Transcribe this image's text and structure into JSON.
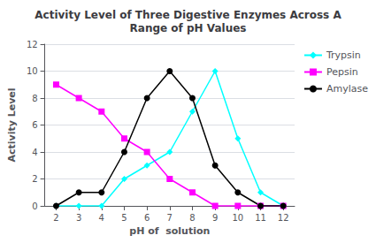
{
  "chart_data": {
    "type": "line",
    "title": "Activity Level of Three Digestive Enzymes Across A\nRange of pH Values",
    "xlabel": "pH of  solution",
    "ylabel": "Activity Level",
    "x": [
      2,
      3,
      4,
      5,
      6,
      7,
      8,
      9,
      10,
      11,
      12
    ],
    "xlim": [
      1.5,
      12.5
    ],
    "xticks": [
      2,
      3,
      4,
      5,
      6,
      7,
      8,
      9,
      10,
      11,
      12
    ],
    "ylim": [
      0,
      12
    ],
    "yticks": [
      0,
      2,
      4,
      6,
      8,
      10,
      12
    ],
    "grid": true,
    "legend": "upper right",
    "series": [
      {
        "name": "Trypsin",
        "color": "cyan",
        "marker": "diamond",
        "values": [
          0,
          0,
          0,
          2,
          3,
          4,
          7,
          10,
          5,
          1,
          0
        ]
      },
      {
        "name": "Pepsin",
        "color": "#ff00ff",
        "marker": "square",
        "values": [
          9,
          8,
          7,
          5,
          4,
          2,
          1,
          0,
          0,
          0,
          0
        ]
      },
      {
        "name": "Amylase",
        "color": "#000000",
        "marker": "circle",
        "values": [
          0,
          1,
          1,
          4,
          8,
          10,
          8,
          3,
          1,
          0,
          0
        ]
      }
    ]
  }
}
